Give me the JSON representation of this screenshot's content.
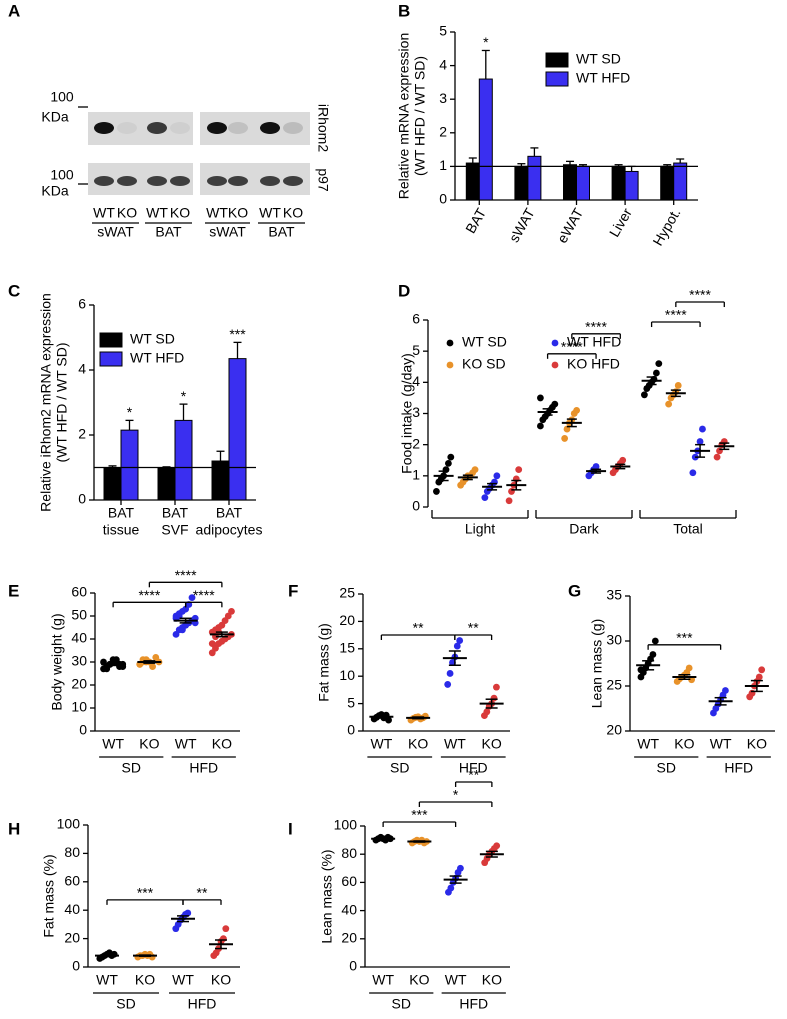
{
  "chart_data": [
    {
      "type": "blot",
      "panel": "A",
      "markers": [
        {
          "value": 100,
          "unit": "KDa"
        },
        {
          "value": 100,
          "unit": "KDa"
        }
      ],
      "rows": [
        "iRhom2",
        "p97"
      ],
      "lanes": [
        "WT",
        "KO",
        "WT",
        "KO",
        "WT",
        "KO",
        "WT",
        "KO"
      ],
      "groups": [
        "sWAT",
        "BAT",
        "sWAT",
        "BAT"
      ]
    },
    {
      "type": "bar",
      "panel": "B",
      "ylabel": [
        "Relative mRNA expression",
        "(WT HFD / WT SD)"
      ],
      "categories": [
        "BAT",
        "sWAT",
        "eWAT",
        "Liver",
        "Hypot."
      ],
      "series": [
        {
          "name": "WT SD",
          "color": "#000000",
          "values": [
            1.1,
            1.0,
            1.05,
            1.0,
            1.0
          ],
          "errors": [
            0.15,
            0.08,
            0.1,
            0.05,
            0.05
          ],
          "labels": [
            null,
            null,
            null,
            null,
            null
          ]
        },
        {
          "name": "WT HFD",
          "color": "#3a2ff0",
          "values": [
            3.6,
            1.3,
            1.0,
            0.85,
            1.1
          ],
          "errors": [
            0.85,
            0.25,
            0.05,
            0.15,
            0.12
          ],
          "labels": [
            "*",
            null,
            null,
            null,
            null
          ]
        }
      ],
      "hline": 1,
      "ylim": [
        0,
        5
      ],
      "yticks": [
        0,
        1,
        2,
        3,
        4,
        5
      ]
    },
    {
      "type": "bar",
      "panel": "C",
      "ylabel": [
        "Relative iRhom2 mRNA expression",
        "(WT HFD / WT SD)"
      ],
      "categories": [
        [
          "BAT",
          "tissue"
        ],
        [
          "BAT",
          "SVF"
        ],
        [
          "BAT",
          "adipocytes"
        ]
      ],
      "series": [
        {
          "name": "WT SD",
          "color": "#000000",
          "values": [
            1.0,
            1.0,
            1.2
          ],
          "errors": [
            0.05,
            0.02,
            0.3
          ],
          "labels": [
            null,
            null,
            null
          ]
        },
        {
          "name": "WT HFD",
          "color": "#3a2ff0",
          "values": [
            2.15,
            2.45,
            4.35
          ],
          "errors": [
            0.3,
            0.5,
            0.5
          ],
          "labels": [
            "*",
            "*",
            "***"
          ]
        }
      ],
      "hline": 1,
      "ylim": [
        0,
        6
      ],
      "yticks": [
        0,
        2,
        4,
        6
      ]
    },
    {
      "type": "groupeddot",
      "panel": "D",
      "ylabel": "Food intake (g/day)",
      "groups": [
        "Light",
        "Dark",
        "Total"
      ],
      "series": [
        {
          "name": "WT SD",
          "color": "#000000",
          "values": [
            [
              0.5,
              0.8,
              0.9,
              1.0,
              1.2,
              1.4,
              1.6
            ],
            [
              2.6,
              2.8,
              2.9,
              3.0,
              3.1,
              3.2,
              3.3,
              3.5
            ],
            [
              3.6,
              3.8,
              3.9,
              4.0,
              4.1,
              4.3,
              4.6
            ]
          ],
          "mean": [
            1.0,
            3.05,
            4.05
          ],
          "sem": [
            0.15,
            0.1,
            0.12
          ]
        },
        {
          "name": "KO SD",
          "color": "#e8922a",
          "values": [
            [
              0.7,
              0.8,
              0.9,
              1.0,
              1.0,
              1.1,
              1.2
            ],
            [
              2.2,
              2.5,
              2.7,
              2.8,
              3.0,
              3.1
            ],
            [
              3.3,
              3.5,
              3.6,
              3.7,
              3.9
            ]
          ],
          "mean": [
            0.95,
            2.7,
            3.65
          ],
          "sem": [
            0.07,
            0.12,
            0.1
          ]
        },
        {
          "name": "WT HFD",
          "color": "#2a2ae8",
          "values": [
            [
              0.3,
              0.5,
              0.6,
              0.7,
              0.8,
              1.0
            ],
            [
              1.0,
              1.1,
              1.2,
              1.3
            ],
            [
              1.1,
              1.6,
              1.8,
              2.1,
              2.5
            ]
          ],
          "mean": [
            0.65,
            1.15,
            1.8
          ],
          "sem": [
            0.1,
            0.06,
            0.2
          ]
        },
        {
          "name": "KO HFD",
          "color": "#d93a3a",
          "values": [
            [
              0.2,
              0.5,
              0.7,
              0.9,
              1.2
            ],
            [
              1.1,
              1.2,
              1.3,
              1.4,
              1.5
            ],
            [
              1.6,
              1.8,
              2.0,
              2.1
            ]
          ],
          "mean": [
            0.7,
            1.3,
            1.95
          ],
          "sem": [
            0.15,
            0.07,
            0.1
          ]
        }
      ],
      "brackets": [
        {
          "text": "****",
          "group": 1,
          "series": [
            0,
            2
          ]
        },
        {
          "text": "****",
          "group": 1,
          "series": [
            1,
            3
          ]
        },
        {
          "text": "****",
          "group": 2,
          "series": [
            0,
            2
          ]
        },
        {
          "text": "****",
          "group": 2,
          "series": [
            1,
            3
          ]
        }
      ],
      "ylim": [
        0,
        6
      ],
      "yticks": [
        0,
        1,
        2,
        3,
        4,
        5,
        6
      ]
    },
    {
      "type": "dot",
      "panel": "E",
      "ylabel": "Body weight (g)",
      "categories": [
        "WT",
        "KO",
        "WT",
        "KO"
      ],
      "groups": [
        {
          "label": "SD",
          "categories": [
            0,
            1
          ]
        },
        {
          "label": "HFD",
          "categories": [
            2,
            3
          ]
        }
      ],
      "colors": [
        "#000000",
        "#e8922a",
        "#2a2ae8",
        "#d93a3a"
      ],
      "values": [
        [
          27,
          28,
          29,
          30,
          31,
          29,
          28,
          30,
          27,
          29,
          31,
          30,
          28,
          29
        ],
        [
          29,
          30,
          31,
          30,
          28,
          32,
          30,
          29,
          31,
          30
        ],
        [
          42,
          44,
          45,
          46,
          47,
          48,
          49,
          50,
          51,
          52,
          53,
          55,
          58,
          47,
          49,
          50,
          44,
          46
        ],
        [
          34,
          36,
          38,
          39,
          40,
          41,
          42,
          43,
          44,
          45,
          46,
          48,
          50,
          52,
          38,
          41,
          43
        ]
      ],
      "mean": [
        29,
        30,
        48,
        42
      ],
      "sem": [
        0.5,
        0.5,
        1,
        1
      ],
      "brackets": [
        {
          "text": "****",
          "categories": [
            2,
            3
          ]
        },
        {
          "text": "****",
          "categories": [
            0,
            2
          ]
        },
        {
          "text": "****",
          "categories": [
            1,
            3
          ]
        }
      ],
      "ylim": [
        0,
        60
      ],
      "yticks": [
        0,
        10,
        20,
        30,
        40,
        50,
        60
      ]
    },
    {
      "type": "dot",
      "panel": "F",
      "ylabel": "Fat mass (g)",
      "categories": [
        "WT",
        "KO",
        "WT",
        "KO"
      ],
      "groups": [
        {
          "label": "SD",
          "categories": [
            0,
            1
          ]
        },
        {
          "label": "HFD",
          "categories": [
            2,
            3
          ]
        }
      ],
      "colors": [
        "#000000",
        "#e8922a",
        "#2a2ae8",
        "#d93a3a"
      ],
      "values": [
        [
          2.2,
          2.5,
          2.8,
          3.0,
          2.4,
          2.9,
          2.0
        ],
        [
          2.0,
          2.3,
          2.5,
          2.6,
          2.2,
          2.4,
          2.7
        ],
        [
          8.5,
          10.5,
          12.5,
          13.5,
          15.5,
          16.5
        ],
        [
          2.8,
          3.5,
          4.5,
          5.0,
          6.0,
          8.0
        ]
      ],
      "mean": [
        2.6,
        2.4,
        13.3,
        5.0
      ],
      "sem": [
        0.2,
        0.15,
        1.3,
        0.8
      ],
      "brackets": [
        {
          "text": "**",
          "categories": [
            0,
            2
          ]
        },
        {
          "text": "**",
          "categories": [
            2,
            3
          ]
        }
      ],
      "ylim": [
        0,
        25
      ],
      "yticks": [
        0,
        5,
        10,
        15,
        20,
        25
      ]
    },
    {
      "type": "dot",
      "panel": "G",
      "ylabel": "Lean mass (g)",
      "categories": [
        "WT",
        "KO",
        "WT",
        "KO"
      ],
      "groups": [
        {
          "label": "SD",
          "categories": [
            0,
            1
          ]
        },
        {
          "label": "HFD",
          "categories": [
            2,
            3
          ]
        }
      ],
      "colors": [
        "#000000",
        "#e8922a",
        "#2a2ae8",
        "#d93a3a"
      ],
      "values": [
        [
          26.0,
          26.5,
          27.0,
          27.5,
          28.0,
          28.5,
          30.0,
          26.8
        ],
        [
          25.5,
          25.8,
          26.0,
          26.2,
          26.5,
          27.0,
          25.7
        ],
        [
          22.0,
          22.5,
          23.0,
          23.5,
          24.0,
          24.5
        ],
        [
          23.8,
          24.2,
          25.0,
          25.5,
          26.0,
          26.8
        ]
      ],
      "mean": [
        27.3,
        26.0,
        23.3,
        25.0
      ],
      "sem": [
        0.5,
        0.25,
        0.4,
        0.6
      ],
      "brackets": [
        {
          "text": "***",
          "categories": [
            0,
            2
          ]
        }
      ],
      "ylim": [
        20,
        35
      ],
      "yticks": [
        20,
        25,
        30,
        35
      ]
    },
    {
      "type": "dot",
      "panel": "H",
      "ylabel": "Fat mass (%)",
      "categories": [
        "WT",
        "KO",
        "WT",
        "KO"
      ],
      "groups": [
        {
          "label": "SD",
          "categories": [
            0,
            1
          ]
        },
        {
          "label": "HFD",
          "categories": [
            2,
            3
          ]
        }
      ],
      "colors": [
        "#000000",
        "#e8922a",
        "#2a2ae8",
        "#d93a3a"
      ],
      "values": [
        [
          6,
          7,
          8,
          9,
          10,
          8,
          9
        ],
        [
          7,
          8,
          8,
          9,
          8,
          9,
          7
        ],
        [
          27,
          30,
          33,
          35,
          37,
          38
        ],
        [
          8,
          10,
          13,
          18,
          20,
          27
        ]
      ],
      "mean": [
        8,
        8,
        34,
        16
      ],
      "sem": [
        0.6,
        0.4,
        2,
        3
      ],
      "brackets": [
        {
          "text": "***",
          "categories": [
            0,
            2
          ]
        },
        {
          "text": "**",
          "categories": [
            2,
            3
          ]
        }
      ],
      "ylim": [
        0,
        100
      ],
      "yticks": [
        0,
        20,
        40,
        60,
        80,
        100
      ]
    },
    {
      "type": "dot",
      "panel": "I",
      "ylabel": "Lean mass (%)",
      "categories": [
        "WT",
        "KO",
        "WT",
        "KO"
      ],
      "groups": [
        {
          "label": "SD",
          "categories": [
            0,
            1
          ]
        },
        {
          "label": "HFD",
          "categories": [
            2,
            3
          ]
        }
      ],
      "colors": [
        "#000000",
        "#e8922a",
        "#2a2ae8",
        "#d93a3a"
      ],
      "values": [
        [
          90,
          91,
          92,
          91,
          90,
          92,
          91
        ],
        [
          88,
          89,
          90,
          89,
          90,
          88,
          89
        ],
        [
          53,
          56,
          60,
          63,
          67,
          70
        ],
        [
          74,
          77,
          80,
          82,
          84,
          86
        ]
      ],
      "mean": [
        91,
        89,
        62,
        80
      ],
      "sem": [
        0.5,
        0.4,
        2.5,
        2
      ],
      "brackets": [
        {
          "text": "***",
          "categories": [
            0,
            2
          ]
        },
        {
          "text": "*",
          "categories": [
            1,
            3
          ]
        },
        {
          "text": "**",
          "categories": [
            2,
            3
          ]
        }
      ],
      "ylim": [
        0,
        100
      ],
      "yticks": [
        0,
        20,
        40,
        60,
        80,
        100
      ]
    }
  ]
}
